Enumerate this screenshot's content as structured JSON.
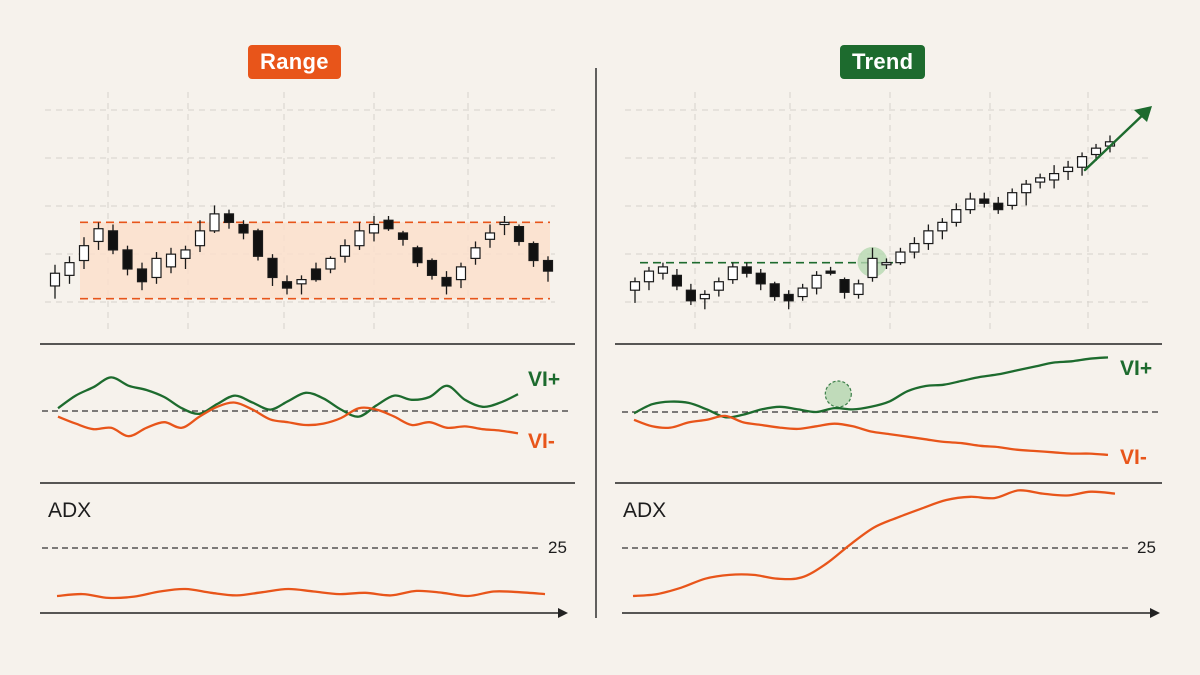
{
  "colors": {
    "background": "#f6f2ec",
    "range_accent": "#e8551a",
    "trend_accent": "#1d6b2e",
    "bull_fill": "#ffffff",
    "bear_fill": "#111111",
    "range_band": "#fbe0cc",
    "grid": "#d6d2cc"
  },
  "panels": {
    "range": {
      "title": "Range",
      "vi_plus_label": "VI+",
      "vi_minus_label": "VI-",
      "adx_label": "ADX",
      "adx_threshold_label": "25"
    },
    "trend": {
      "title": "Trend",
      "vi_plus_label": "VI+",
      "vi_minus_label": "VI-",
      "adx_label": "ADX",
      "adx_threshold_label": "25"
    }
  },
  "chart_data": [
    {
      "type": "candlestick",
      "panel": "range",
      "title": "Range",
      "price_scale": [
        0,
        100
      ],
      "range_band": {
        "upper": 72,
        "lower": 36
      },
      "grid": true,
      "candles": [
        {
          "o": 42,
          "h": 52,
          "l": 36,
          "c": 48
        },
        {
          "o": 47,
          "h": 56,
          "l": 43,
          "c": 53
        },
        {
          "o": 54,
          "h": 65,
          "l": 50,
          "c": 61
        },
        {
          "o": 63,
          "h": 72,
          "l": 59,
          "c": 69
        },
        {
          "o": 68,
          "h": 71,
          "l": 57,
          "c": 59
        },
        {
          "o": 59,
          "h": 61,
          "l": 47,
          "c": 50
        },
        {
          "o": 50,
          "h": 53,
          "l": 40,
          "c": 44
        },
        {
          "o": 46,
          "h": 58,
          "l": 43,
          "c": 55
        },
        {
          "o": 51,
          "h": 60,
          "l": 48,
          "c": 57
        },
        {
          "o": 55,
          "h": 61,
          "l": 50,
          "c": 59
        },
        {
          "o": 61,
          "h": 73,
          "l": 58,
          "c": 68
        },
        {
          "o": 68,
          "h": 80,
          "l": 67,
          "c": 76
        },
        {
          "o": 76,
          "h": 78,
          "l": 69,
          "c": 72
        },
        {
          "o": 71,
          "h": 73,
          "l": 64,
          "c": 67
        },
        {
          "o": 68,
          "h": 69,
          "l": 54,
          "c": 56
        },
        {
          "o": 55,
          "h": 57,
          "l": 42,
          "c": 46
        },
        {
          "o": 44,
          "h": 47,
          "l": 38,
          "c": 41
        },
        {
          "o": 43,
          "h": 47,
          "l": 38,
          "c": 45
        },
        {
          "o": 50,
          "h": 53,
          "l": 44,
          "c": 45
        },
        {
          "o": 50,
          "h": 56,
          "l": 48,
          "c": 55
        },
        {
          "o": 56,
          "h": 64,
          "l": 53,
          "c": 61
        },
        {
          "o": 61,
          "h": 72,
          "l": 59,
          "c": 68
        },
        {
          "o": 67,
          "h": 75,
          "l": 63,
          "c": 71
        },
        {
          "o": 73,
          "h": 75,
          "l": 68,
          "c": 69
        },
        {
          "o": 67,
          "h": 68,
          "l": 61,
          "c": 64
        },
        {
          "o": 60,
          "h": 61,
          "l": 51,
          "c": 53
        },
        {
          "o": 54,
          "h": 55,
          "l": 45,
          "c": 47
        },
        {
          "o": 46,
          "h": 49,
          "l": 38,
          "c": 42
        },
        {
          "o": 45,
          "h": 53,
          "l": 41,
          "c": 51
        },
        {
          "o": 55,
          "h": 63,
          "l": 52,
          "c": 60
        },
        {
          "o": 64,
          "h": 71,
          "l": 60,
          "c": 67
        },
        {
          "o": 71,
          "h": 75,
          "l": 66,
          "c": 72
        },
        {
          "o": 70,
          "h": 71,
          "l": 61,
          "c": 63
        },
        {
          "o": 62,
          "h": 63,
          "l": 51,
          "c": 54
        },
        {
          "o": 54,
          "h": 56,
          "l": 44,
          "c": 49
        }
      ]
    },
    {
      "type": "candlestick",
      "panel": "trend",
      "title": "Trend",
      "price_scale": [
        0,
        100
      ],
      "breakout_level": 53,
      "breakout_candle_index": 17,
      "trend_arrow": true,
      "grid": true,
      "candles": [
        {
          "o": 40,
          "h": 46,
          "l": 34,
          "c": 44
        },
        {
          "o": 44,
          "h": 51,
          "l": 40,
          "c": 49
        },
        {
          "o": 48,
          "h": 53,
          "l": 45,
          "c": 51
        },
        {
          "o": 47,
          "h": 50,
          "l": 40,
          "c": 42
        },
        {
          "o": 40,
          "h": 43,
          "l": 33,
          "c": 35
        },
        {
          "o": 36,
          "h": 40,
          "l": 31,
          "c": 38
        },
        {
          "o": 40,
          "h": 46,
          "l": 37,
          "c": 44
        },
        {
          "o": 45,
          "h": 53,
          "l": 43,
          "c": 51
        },
        {
          "o": 51,
          "h": 53,
          "l": 46,
          "c": 48
        },
        {
          "o": 48,
          "h": 50,
          "l": 40,
          "c": 43
        },
        {
          "o": 43,
          "h": 44,
          "l": 35,
          "c": 37
        },
        {
          "o": 38,
          "h": 40,
          "l": 31,
          "c": 35
        },
        {
          "o": 37,
          "h": 43,
          "l": 35,
          "c": 41
        },
        {
          "o": 41,
          "h": 49,
          "l": 38,
          "c": 47
        },
        {
          "o": 49,
          "h": 51,
          "l": 47,
          "c": 48
        },
        {
          "o": 45,
          "h": 46,
          "l": 36,
          "c": 39
        },
        {
          "o": 38,
          "h": 45,
          "l": 36,
          "c": 43
        },
        {
          "o": 46,
          "h": 60,
          "l": 44,
          "c": 55
        },
        {
          "o": 52,
          "h": 55,
          "l": 50,
          "c": 53
        },
        {
          "o": 53,
          "h": 60,
          "l": 52,
          "c": 58
        },
        {
          "o": 58,
          "h": 65,
          "l": 55,
          "c": 62
        },
        {
          "o": 62,
          "h": 71,
          "l": 59,
          "c": 68
        },
        {
          "o": 68,
          "h": 74,
          "l": 64,
          "c": 72
        },
        {
          "o": 72,
          "h": 81,
          "l": 70,
          "c": 78
        },
        {
          "o": 78,
          "h": 86,
          "l": 76,
          "c": 83
        },
        {
          "o": 83,
          "h": 86,
          "l": 79,
          "c": 81
        },
        {
          "o": 81,
          "h": 84,
          "l": 76,
          "c": 78
        },
        {
          "o": 80,
          "h": 88,
          "l": 78,
          "c": 86
        },
        {
          "o": 86,
          "h": 92,
          "l": 80,
          "c": 90
        },
        {
          "o": 91,
          "h": 95,
          "l": 88,
          "c": 93
        },
        {
          "o": 92,
          "h": 99,
          "l": 88,
          "c": 95
        },
        {
          "o": 96,
          "h": 101,
          "l": 92,
          "c": 98
        },
        {
          "o": 98,
          "h": 105,
          "l": 94,
          "c": 103
        },
        {
          "o": 104,
          "h": 109,
          "l": 101,
          "c": 107
        },
        {
          "o": 108,
          "h": 113,
          "l": 105,
          "c": 110
        }
      ]
    },
    {
      "type": "line",
      "panel": "range",
      "indicator": "Vortex",
      "series": [
        {
          "name": "VI+",
          "color": "#1d6b2e",
          "values": [
            0.1,
            0.55,
            0.85,
            1.2,
            0.9,
            0.75,
            0.5,
            0.1,
            -0.1,
            0.25,
            0.55,
            0.3,
            0.05,
            0.35,
            0.65,
            0.45,
            0.05,
            -0.2,
            0.2,
            0.55,
            0.4,
            0.5,
            0.9,
            0.4,
            0.15,
            0.3,
            0.6
          ]
        },
        {
          "name": "VI-",
          "color": "#e8551a",
          "values": [
            -0.2,
            -0.45,
            -0.65,
            -0.6,
            -0.9,
            -0.6,
            -0.4,
            -0.6,
            -0.2,
            0.15,
            0.3,
            0.05,
            -0.3,
            -0.4,
            -0.5,
            -0.45,
            -0.25,
            0.1,
            0.05,
            -0.2,
            -0.5,
            -0.4,
            -0.6,
            -0.55,
            -0.65,
            -0.7,
            -0.8
          ]
        }
      ],
      "zero_line": true
    },
    {
      "type": "line",
      "panel": "trend",
      "indicator": "Vortex",
      "series": [
        {
          "name": "VI+",
          "color": "#1d6b2e",
          "values": [
            -0.05,
            0.3,
            0.4,
            0.35,
            0.1,
            -0.2,
            -0.1,
            0.1,
            0.2,
            0.1,
            0.0,
            0.15,
            0.1,
            0.2,
            0.4,
            0.8,
            1.0,
            1.05,
            1.2,
            1.35,
            1.45,
            1.6,
            1.75,
            1.9,
            1.95,
            2.05,
            2.1
          ]
        },
        {
          "name": "VI-",
          "color": "#e8551a",
          "values": [
            -0.3,
            -0.55,
            -0.6,
            -0.4,
            -0.3,
            -0.15,
            -0.4,
            -0.5,
            -0.6,
            -0.65,
            -0.55,
            -0.45,
            -0.55,
            -0.75,
            -0.85,
            -0.95,
            -1.05,
            -1.15,
            -1.2,
            -1.3,
            -1.35,
            -1.45,
            -1.5,
            -1.55,
            -1.6,
            -1.6,
            -1.65
          ]
        }
      ],
      "zero_line": true,
      "crossover_index": 10
    },
    {
      "type": "line",
      "panel": "range",
      "indicator": "ADX",
      "threshold": 25,
      "series": [
        {
          "name": "ADX",
          "color": "#e8551a",
          "values": [
            17.5,
            17.8,
            17.2,
            17.4,
            18.2,
            18.6,
            18.0,
            17.6,
            18.1,
            18.6,
            18.2,
            17.8,
            18.0,
            17.6,
            18.3,
            18.0,
            17.5,
            18.2,
            18.1,
            17.8
          ]
        }
      ]
    },
    {
      "type": "line",
      "panel": "trend",
      "indicator": "ADX",
      "threshold": 25,
      "series": [
        {
          "name": "ADX",
          "color": "#e8551a",
          "values": [
            17.5,
            17.8,
            18.8,
            20.2,
            20.8,
            20.8,
            20.2,
            20.4,
            22.5,
            25.5,
            28.2,
            29.8,
            31.2,
            32.5,
            33.0,
            32.8,
            34.0,
            33.5,
            33.2,
            33.8,
            33.5
          ]
        }
      ]
    }
  ]
}
